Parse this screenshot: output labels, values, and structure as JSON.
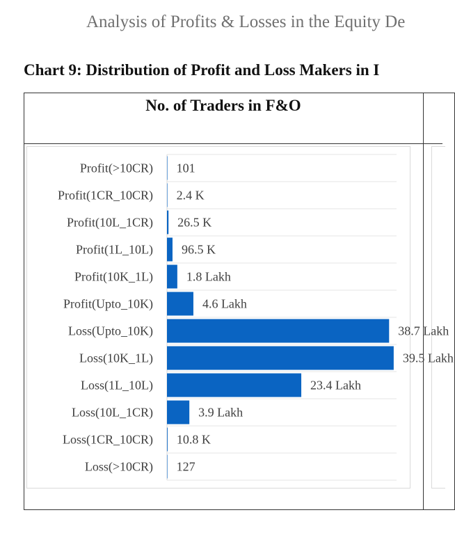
{
  "page": {
    "doc_header": "Analysis of Profits & Losses in the Equity De",
    "caption": "Chart 9: Distribution of Profit and Loss Makers in I",
    "table_header": "No. of Traders in F&O"
  },
  "chart_data": {
    "type": "bar",
    "orientation": "horizontal",
    "title": "",
    "xlabel": "",
    "ylabel": "",
    "categories": [
      "Profit(>10CR)",
      "Profit(1CR_10CR)",
      "Profit(10L_1CR)",
      "Profit(1L_10L)",
      "Profit(10K_1L)",
      "Profit(Upto_10K)",
      "Loss(Upto_10K)",
      "Loss(10K_1L)",
      "Loss(1L_10L)",
      "Loss(10L_1CR)",
      "Loss(1CR_10CR)",
      "Loss(>10CR)"
    ],
    "values": [
      101,
      2400,
      26500,
      96500,
      180000,
      460000,
      3870000,
      3950000,
      2340000,
      390000,
      10800,
      127
    ],
    "data_labels": [
      "101",
      "2.4 K",
      "26.5 K",
      "96.5 K",
      "1.8 Lakh",
      "4.6 Lakh",
      "38.7 Lakh",
      "39.5 Lakh",
      "23.4 Lakh",
      "3.9 Lakh",
      "10.8 K",
      "127"
    ],
    "xlim": [
      0,
      4000000
    ],
    "bar_color": "#0A64C2",
    "grid": true,
    "gridline_color": "#e6e6e6",
    "axis_color": "#d9d9d9",
    "legend": "none"
  }
}
